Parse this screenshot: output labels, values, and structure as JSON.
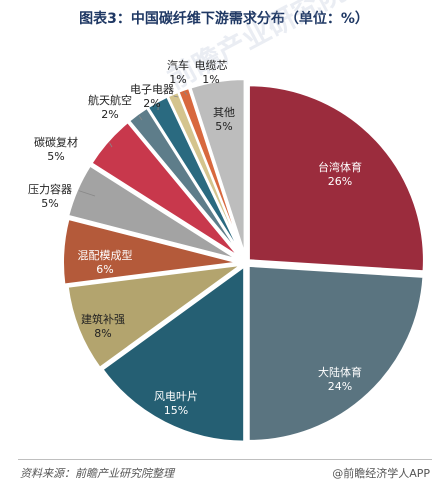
{
  "title": "图表3：中国碳纤维下游需求分布（单位：%）",
  "source": "资料来源：前瞻产业研究院整理",
  "brand": "@前瞻经济学人APP",
  "watermark": "前瞻产业研究院",
  "chart_data": {
    "type": "pie",
    "title": "图表3：中国碳纤维下游需求分布（单位：%）",
    "slices": [
      {
        "name": "台湾体育",
        "value": 26,
        "label": "26%",
        "color": "#9b2c3d"
      },
      {
        "name": "大陆体育",
        "value": 24,
        "label": "24%",
        "color": "#5a7480"
      },
      {
        "name": "风电叶片",
        "value": 15,
        "label": "15%",
        "color": "#255f73"
      },
      {
        "name": "建筑补强",
        "value": 8,
        "label": "8%",
        "color": "#b3a46e"
      },
      {
        "name": "混配模成型",
        "value": 6,
        "label": "6%",
        "color": "#b45a3a"
      },
      {
        "name": "压力容器",
        "value": 5,
        "label": "5%",
        "color": "#a3a3a3"
      },
      {
        "name": "碳碳复材",
        "value": 5,
        "label": "5%",
        "color": "#c8384c"
      },
      {
        "name": "航天航空",
        "value": 2,
        "label": "2%",
        "color": "#5e7d8a"
      },
      {
        "name": "电子电器",
        "value": 2,
        "label": "2%",
        "color": "#2a6a80"
      },
      {
        "name": "汽车",
        "value": 1,
        "label": "1%",
        "color": "#d4c48e"
      },
      {
        "name": "电缆芯",
        "value": 1,
        "label": "1%",
        "color": "#d8683e"
      },
      {
        "name": "其他",
        "value": 5,
        "label": "5%",
        "color": "#bdbdbd"
      }
    ]
  }
}
